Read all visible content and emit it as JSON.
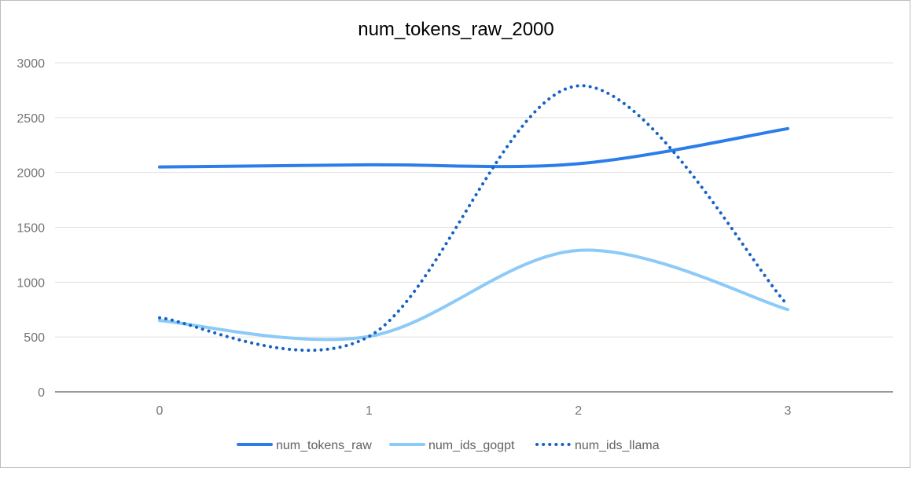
{
  "chart_data": {
    "type": "line",
    "title": "num_tokens_raw_2000",
    "xlabel": "",
    "ylabel": "",
    "categories": [
      "0",
      "1",
      "2",
      "3"
    ],
    "ylim": [
      0,
      3000
    ],
    "yticks": [
      "0",
      "500",
      "1000",
      "1500",
      "2000",
      "2500",
      "3000"
    ],
    "grid": true,
    "smooth": true,
    "legend_position": "bottom",
    "series": [
      {
        "name": "num_tokens_raw",
        "values": [
          2050,
          2070,
          2080,
          2400
        ],
        "color": "#2b7de9",
        "style": "solid"
      },
      {
        "name": "num_ids_gogpt",
        "values": [
          650,
          505,
          1290,
          750
        ],
        "color": "#8ccaf7",
        "style": "solid"
      },
      {
        "name": "num_ids_llama",
        "values": [
          675,
          505,
          2790,
          790
        ],
        "color": "#1662c4",
        "style": "dotted"
      }
    ]
  }
}
